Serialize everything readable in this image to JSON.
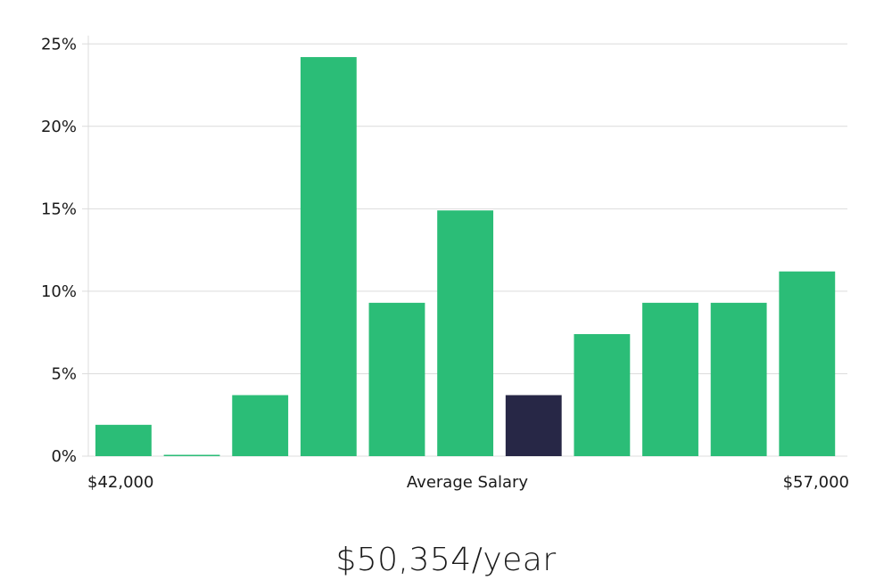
{
  "chart_data": {
    "type": "bar",
    "title": "",
    "xlabel": "Average Salary",
    "ylabel": "",
    "x_start_label": "$42,000",
    "x_end_label": "$57,000",
    "values": [
      1.9,
      0.05,
      3.7,
      24.2,
      9.3,
      14.9,
      3.7,
      7.4,
      9.3,
      9.3,
      11.2
    ],
    "highlight_index": 6,
    "y_ticks": [
      "0%",
      "5%",
      "10%",
      "15%",
      "20%",
      "25%"
    ],
    "y_tick_values": [
      0,
      5,
      10,
      15,
      20,
      25
    ],
    "ylim": [
      0,
      25.5
    ],
    "grid": true,
    "bar_color": "#2bbd77",
    "highlight_color": "#272746"
  },
  "summary": "$50,354/year"
}
